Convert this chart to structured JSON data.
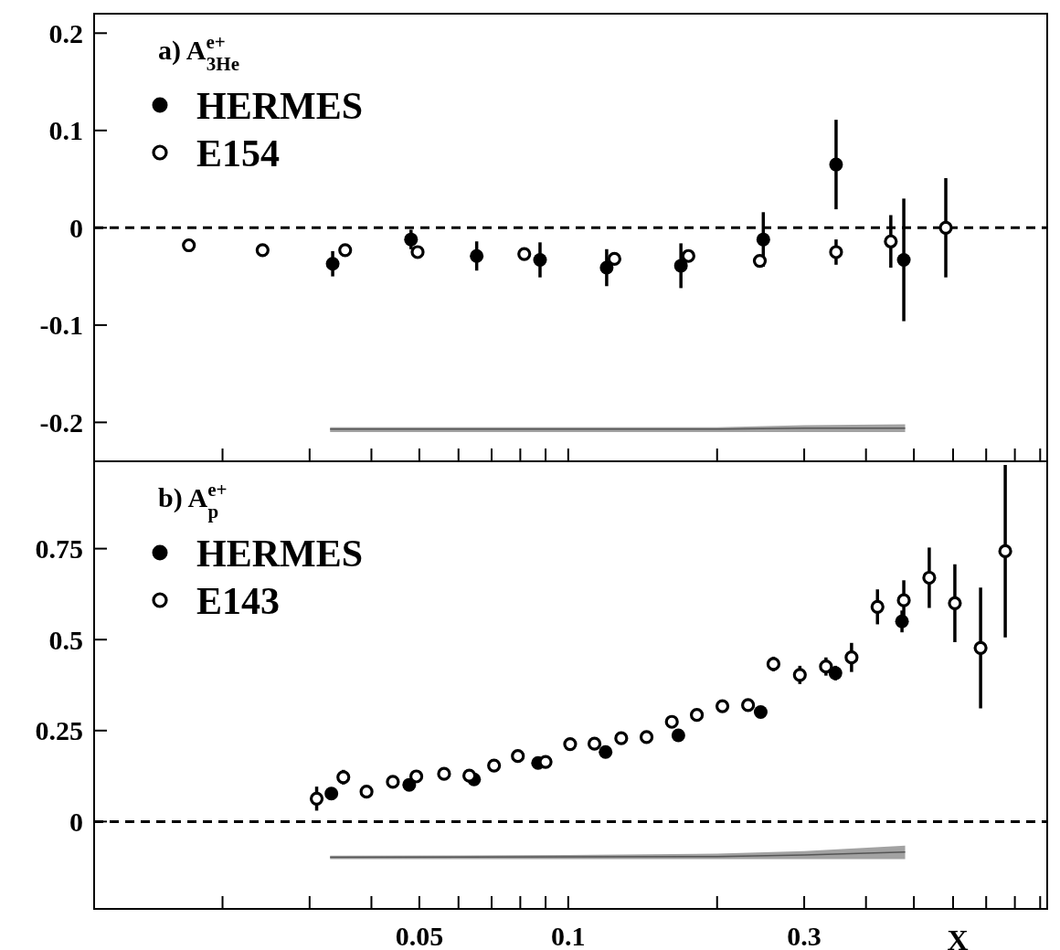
{
  "chart_data": [
    {
      "type": "scatter",
      "annotations": [
        "a) A$^{e+}$$_{3He}$"
      ],
      "xlim": [
        0.011,
        0.93
      ],
      "ylim": [
        -0.24,
        0.22
      ],
      "log": "x",
      "legend": "top left",
      "tick_labels": "y",
      "xticks": [
        {
          "value": 0.02,
          "label": null
        },
        {
          "value": 0.03,
          "label": null
        },
        {
          "value": 0.04,
          "label": null
        },
        {
          "value": 0.05,
          "label": null
        },
        {
          "value": 0.06,
          "label": null
        },
        {
          "value": 0.07,
          "label": null
        },
        {
          "value": 0.08,
          "label": null
        },
        {
          "value": 0.09,
          "label": null
        },
        {
          "value": 0.1,
          "label": null
        },
        {
          "value": 0.2,
          "label": null
        },
        {
          "value": 0.3,
          "label": null
        },
        {
          "value": 0.4,
          "label": null
        },
        {
          "value": 0.5,
          "label": null
        },
        {
          "value": 0.6,
          "label": null
        },
        {
          "value": 0.7,
          "label": null
        },
        {
          "value": 0.8,
          "label": null
        },
        {
          "value": 0.9,
          "label": null
        }
      ],
      "yticks": [
        -0.2,
        -0.1,
        0,
        0.1,
        0.2
      ],
      "ref_lines": [
        {
          "axis": "y",
          "value": 0,
          "line_style": "dashed",
          "color": "#000000"
        }
      ],
      "series": [
        {
          "type": "line",
          "marker": "none",
          "color": "#555555",
          "x": [
            0.033,
            0.2,
            0.3,
            0.48
          ],
          "values": [
            -0.207,
            -0.207,
            -0.206,
            -0.206
          ],
          "upper": [
            -0.205,
            -0.205,
            -0.203,
            -0.202
          ],
          "lower": [
            -0.21,
            -0.21,
            -0.21,
            -0.21
          ]
        },
        {
          "name": "HERMES",
          "color": "#000000",
          "marker": "circle",
          "x": [
            0.0334,
            0.0481,
            0.0653,
            0.0877,
            0.1196,
            0.169,
            0.248,
            0.348,
            0.477
          ],
          "values": [
            -0.037,
            -0.012,
            -0.029,
            -0.033,
            -0.041,
            -0.039,
            -0.012,
            0.065,
            -0.033
          ],
          "errors": [
            0.013,
            0.01,
            0.015,
            0.018,
            0.019,
            0.023,
            0.028,
            0.046,
            0.063
          ]
        },
        {
          "name": "E154",
          "color": "#000000",
          "marker": "circle-open",
          "x": [
            0.0171,
            0.0241,
            0.0354,
            0.0496,
            0.0815,
            0.124,
            0.175,
            0.244,
            0.348,
            0.449,
            0.58
          ],
          "values": [
            -0.018,
            -0.023,
            -0.023,
            -0.025,
            -0.027,
            -0.032,
            -0.029,
            -0.034,
            -0.025,
            -0.014,
            0.0
          ],
          "errors": [
            null,
            null,
            null,
            null,
            null,
            null,
            null,
            null,
            0.013,
            0.027,
            0.051
          ]
        }
      ]
    },
    {
      "type": "scatter",
      "annotations": [
        "b) A$^{e+}$$_{p}$"
      ],
      "xlabel": "X",
      "xlim": [
        0.011,
        0.93
      ],
      "ylim": [
        -0.24,
        0.99
      ],
      "log": "x",
      "legend": "top left",
      "xticks": [
        {
          "value": 0.02,
          "label": null
        },
        {
          "value": 0.03,
          "label": null
        },
        {
          "value": 0.04,
          "label": null
        },
        0.05,
        {
          "value": 0.06,
          "label": null
        },
        {
          "value": 0.07,
          "label": null
        },
        {
          "value": 0.08,
          "label": null
        },
        {
          "value": 0.09,
          "label": null
        },
        0.1,
        {
          "value": 0.2,
          "label": null
        },
        0.3,
        {
          "value": 0.4,
          "label": null
        },
        {
          "value": 0.5,
          "label": null
        },
        {
          "value": 0.6,
          "label": null
        },
        {
          "value": 0.7,
          "label": null
        },
        {
          "value": 0.8,
          "label": null
        },
        {
          "value": 0.9,
          "label": null
        }
      ],
      "yticks": [
        0,
        0.25,
        0.5,
        0.75
      ],
      "ref_lines": [
        {
          "axis": "y",
          "value": 0,
          "line_style": "dashed",
          "color": "#000000"
        }
      ],
      "series": [
        {
          "type": "line",
          "marker": "none",
          "color": "#555555",
          "x": [
            0.033,
            0.1,
            0.2,
            0.3,
            0.48
          ],
          "values": [
            -0.098,
            -0.097,
            -0.096,
            -0.092,
            -0.084
          ],
          "upper": [
            -0.094,
            -0.092,
            -0.088,
            -0.081,
            -0.066
          ],
          "lower": [
            -0.103,
            -0.103,
            -0.103,
            -0.103,
            -0.103
          ]
        },
        {
          "name": "HERMES",
          "color": "#000000",
          "marker": "circle",
          "x": [
            0.0332,
            0.0477,
            0.0645,
            0.0869,
            0.119,
            0.167,
            0.245,
            0.347,
            0.473
          ],
          "values": [
            0.077,
            0.101,
            0.116,
            0.161,
            0.191,
            0.237,
            0.301,
            0.408,
            0.55
          ],
          "errors": [
            null,
            null,
            null,
            null,
            null,
            null,
            null,
            0.02,
            0.03
          ]
        },
        {
          "name": "E143",
          "color": "#000000",
          "marker": "circle-open",
          "x": [
            0.031,
            0.0351,
            0.0391,
            0.0442,
            0.0493,
            0.0561,
            0.0631,
            0.0708,
            0.0791,
            0.09,
            0.1009,
            0.113,
            0.128,
            0.144,
            0.162,
            0.182,
            0.205,
            0.231,
            0.26,
            0.294,
            0.332,
            0.374,
            0.422,
            0.477,
            0.537,
            0.605,
            0.682,
            0.765
          ],
          "values": [
            0.063,
            0.122,
            0.082,
            0.109,
            0.124,
            0.131,
            0.126,
            0.154,
            0.18,
            0.164,
            0.213,
            0.214,
            0.229,
            0.232,
            0.274,
            0.293,
            0.317,
            0.32,
            0.433,
            0.403,
            0.426,
            0.451,
            0.59,
            0.608,
            0.67,
            0.6,
            0.477,
            0.743
          ],
          "errors": [
            0.033,
            0.02,
            0.015,
            0.012,
            0.012,
            null,
            null,
            null,
            null,
            null,
            null,
            null,
            null,
            null,
            null,
            null,
            null,
            null,
            0.02,
            0.025,
            0.025,
            0.04,
            0.048,
            0.055,
            0.083,
            0.107,
            0.166,
            0.237
          ]
        }
      ]
    }
  ]
}
